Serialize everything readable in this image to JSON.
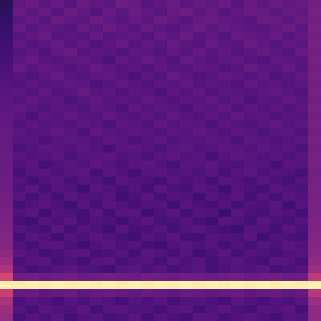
{
  "chart_data": {
    "type": "heatmap",
    "color": "magma",
    "tick_labels": false,
    "zlim": [
      0,
      100
    ],
    "cells": [
      [
        16,
        29,
        31,
        28,
        30,
        27,
        31,
        29,
        28,
        32,
        30,
        27,
        29,
        31,
        28,
        30,
        29,
        31,
        27,
        30,
        28,
        31,
        29,
        30,
        33
      ],
      [
        17,
        31,
        28,
        30,
        27,
        31,
        29,
        26,
        30,
        28,
        31,
        29,
        27,
        30,
        32,
        28,
        30,
        27,
        29,
        31,
        30,
        28,
        30,
        29,
        34
      ],
      [
        18,
        28,
        30,
        27,
        31,
        29,
        28,
        31,
        29,
        27,
        30,
        28,
        31,
        29,
        27,
        30,
        31,
        29,
        28,
        27,
        31,
        30,
        28,
        31,
        33
      ],
      [
        19,
        30,
        27,
        29,
        28,
        26,
        30,
        28,
        31,
        29,
        27,
        30,
        28,
        26,
        29,
        31,
        28,
        30,
        29,
        28,
        27,
        29,
        31,
        28,
        34
      ],
      [
        20,
        27,
        29,
        31,
        26,
        28,
        27,
        30,
        27,
        28,
        29,
        26,
        30,
        28,
        31,
        27,
        29,
        26,
        30,
        29,
        28,
        30,
        27,
        29,
        33
      ],
      [
        21,
        29,
        26,
        28,
        30,
        27,
        29,
        25,
        28,
        30,
        26,
        29,
        27,
        30,
        28,
        26,
        30,
        28,
        27,
        31,
        29,
        26,
        29,
        28,
        34
      ],
      [
        22,
        26,
        28,
        25,
        29,
        31,
        26,
        28,
        27,
        25,
        29,
        28,
        26,
        29,
        27,
        30,
        27,
        29,
        26,
        28,
        30,
        28,
        26,
        30,
        33
      ],
      [
        23,
        28,
        30,
        27,
        26,
        28,
        29,
        27,
        24,
        29,
        27,
        30,
        28,
        25,
        30,
        28,
        26,
        28,
        29,
        27,
        25,
        29,
        28,
        27,
        34
      ],
      [
        24,
        30,
        27,
        29,
        28,
        25,
        27,
        30,
        28,
        26,
        28,
        25,
        29,
        27,
        26,
        29,
        28,
        25,
        27,
        30,
        28,
        27,
        30,
        26,
        33
      ],
      [
        25,
        27,
        25,
        28,
        30,
        27,
        26,
        28,
        29,
        27,
        24,
        28,
        26,
        30,
        28,
        25,
        27,
        29,
        28,
        26,
        29,
        25,
        27,
        29,
        34
      ],
      [
        26,
        25,
        28,
        26,
        27,
        29,
        28,
        24,
        26,
        29,
        27,
        25,
        28,
        27,
        29,
        26,
        28,
        27,
        25,
        29,
        27,
        28,
        26,
        28,
        33
      ],
      [
        27,
        28,
        26,
        29,
        25,
        27,
        30,
        27,
        28,
        25,
        28,
        27,
        24,
        28,
        26,
        29,
        25,
        28,
        27,
        26,
        28,
        29,
        27,
        25,
        34
      ],
      [
        28,
        26,
        29,
        27,
        28,
        24,
        27,
        29,
        26,
        28,
        26,
        29,
        27,
        25,
        28,
        27,
        29,
        26,
        28,
        24,
        27,
        26,
        29,
        27,
        33
      ],
      [
        28,
        29,
        27,
        25,
        28,
        27,
        25,
        28,
        27,
        24,
        29,
        26,
        28,
        27,
        24,
        28,
        27,
        29,
        25,
        28,
        26,
        28,
        25,
        28,
        34
      ],
      [
        29,
        27,
        24,
        28,
        26,
        29,
        27,
        26,
        29,
        27,
        25,
        28,
        26,
        29,
        27,
        25,
        28,
        26,
        29,
        27,
        28,
        25,
        27,
        26,
        33
      ],
      [
        29,
        25,
        28,
        26,
        27,
        25,
        28,
        27,
        24,
        28,
        27,
        25,
        29,
        26,
        28,
        27,
        24,
        28,
        26,
        25,
        27,
        29,
        26,
        28,
        34
      ],
      [
        30,
        28,
        26,
        27,
        29,
        27,
        24,
        29,
        27,
        26,
        28,
        27,
        25,
        28,
        26,
        29,
        27,
        25,
        28,
        27,
        24,
        27,
        28,
        25,
        33
      ],
      [
        30,
        26,
        27,
        24,
        26,
        28,
        27,
        25,
        28,
        27,
        24,
        26,
        28,
        25,
        27,
        26,
        28,
        27,
        24,
        28,
        27,
        25,
        26,
        28,
        34
      ],
      [
        30,
        24,
        26,
        28,
        27,
        25,
        28,
        26,
        23,
        27,
        28,
        26,
        24,
        27,
        28,
        25,
        26,
        28,
        27,
        25,
        28,
        26,
        27,
        24,
        33
      ],
      [
        31,
        27,
        25,
        26,
        28,
        24,
        26,
        27,
        28,
        25,
        26,
        24,
        27,
        28,
        25,
        27,
        23,
        26,
        28,
        27,
        25,
        27,
        24,
        27,
        34
      ],
      [
        31,
        25,
        27,
        23,
        25,
        27,
        25,
        28,
        26,
        24,
        27,
        28,
        25,
        23,
        27,
        26,
        28,
        25,
        24,
        27,
        26,
        23,
        27,
        26,
        34
      ],
      [
        31,
        23,
        26,
        27,
        24,
        26,
        28,
        23,
        27,
        25,
        22,
        26,
        27,
        25,
        26,
        24,
        27,
        23,
        26,
        28,
        24,
        26,
        25,
        23,
        33
      ],
      [
        32,
        26,
        22,
        25,
        27,
        23,
        26,
        25,
        22,
        27,
        25,
        24,
        22,
        27,
        24,
        26,
        22,
        27,
        25,
        23,
        27,
        24,
        22,
        26,
        34
      ],
      [
        32,
        24,
        27,
        23,
        26,
        25,
        21,
        27,
        25,
        23,
        26,
        22,
        27,
        24,
        23,
        27,
        25,
        21,
        26,
        24,
        22,
        27,
        25,
        24,
        35
      ],
      [
        33,
        27,
        23,
        26,
        22,
        27,
        25,
        24,
        26,
        21,
        24,
        27,
        23,
        26,
        25,
        21,
        26,
        24,
        27,
        22,
        26,
        23,
        27,
        25,
        34
      ],
      [
        33,
        22,
        25,
        27,
        24,
        21,
        26,
        23,
        27,
        25,
        23,
        25,
        26,
        21,
        27,
        24,
        23,
        26,
        22,
        25,
        24,
        27,
        21,
        26,
        35
      ],
      [
        34,
        25,
        27,
        21,
        26,
        24,
        23,
        27,
        22,
        26,
        27,
        21,
        24,
        27,
        22,
        26,
        25,
        19,
        27,
        24,
        23,
        26,
        25,
        22,
        35
      ],
      [
        35,
        23,
        21,
        26,
        24,
        27,
        22,
        25,
        24,
        21,
        25,
        27,
        23,
        24,
        26,
        23,
        21,
        27,
        25,
        22,
        27,
        24,
        23,
        26,
        36
      ],
      [
        36,
        26,
        24,
        23,
        27,
        22,
        26,
        24,
        21,
        27,
        23,
        24,
        26,
        22,
        25,
        27,
        24,
        23,
        21,
        26,
        25,
        22,
        27,
        24,
        36
      ],
      [
        37,
        22,
        27,
        25,
        21,
        26,
        24,
        27,
        25,
        23,
        21,
        26,
        24,
        27,
        23,
        22,
        26,
        25,
        24,
        27,
        21,
        25,
        24,
        23,
        37
      ],
      [
        38,
        25,
        23,
        26,
        27,
        24,
        21,
        25,
        27,
        24,
        26,
        23,
        21,
        25,
        27,
        24,
        26,
        22,
        25,
        23,
        26,
        24,
        27,
        25,
        38
      ],
      [
        40,
        27,
        25,
        22,
        24,
        26,
        27,
        23,
        24,
        26,
        22,
        27,
        25,
        23,
        26,
        21,
        24,
        27,
        23,
        26,
        24,
        22,
        25,
        26,
        39
      ],
      [
        43,
        24,
        26,
        27,
        23,
        25,
        22,
        26,
        27,
        23,
        25,
        26,
        22,
        27,
        24,
        26,
        23,
        25,
        27,
        24,
        22,
        27,
        26,
        23,
        41
      ],
      [
        48,
        26,
        22,
        24,
        26,
        27,
        25,
        24,
        22,
        26,
        27,
        24,
        26,
        23,
        25,
        27,
        22,
        24,
        26,
        25,
        27,
        23,
        24,
        26,
        44
      ],
      [
        58,
        32,
        33,
        31,
        32,
        33,
        31,
        32,
        33,
        32,
        31,
        33,
        32,
        31,
        33,
        32,
        31,
        32,
        33,
        31,
        32,
        33,
        31,
        32,
        52
      ],
      [
        97,
        96,
        97,
        96,
        97,
        96,
        97,
        96,
        97,
        96,
        97,
        96,
        97,
        96,
        97,
        96,
        97,
        96,
        97,
        96,
        97,
        96,
        97,
        96,
        97
      ],
      [
        55,
        30,
        31,
        29,
        30,
        31,
        29,
        30,
        31,
        30,
        29,
        31,
        30,
        29,
        31,
        30,
        29,
        30,
        31,
        29,
        30,
        31,
        29,
        30,
        50
      ],
      [
        47,
        24,
        27,
        25,
        23,
        26,
        24,
        27,
        25,
        22,
        26,
        24,
        27,
        23,
        25,
        26,
        24,
        22,
        27,
        25,
        23,
        26,
        24,
        27,
        43
      ],
      [
        44,
        26,
        23,
        27,
        25,
        24,
        27,
        22,
        26,
        27,
        24,
        25,
        23,
        26,
        27,
        22,
        25,
        27,
        24,
        23,
        26,
        25,
        27,
        22,
        41
      ],
      [
        42,
        23,
        26,
        24,
        27,
        22,
        25,
        26,
        23,
        24,
        27,
        23,
        26,
        24,
        22,
        27,
        26,
        23,
        25,
        27,
        24,
        22,
        26,
        25,
        40
      ]
    ]
  }
}
